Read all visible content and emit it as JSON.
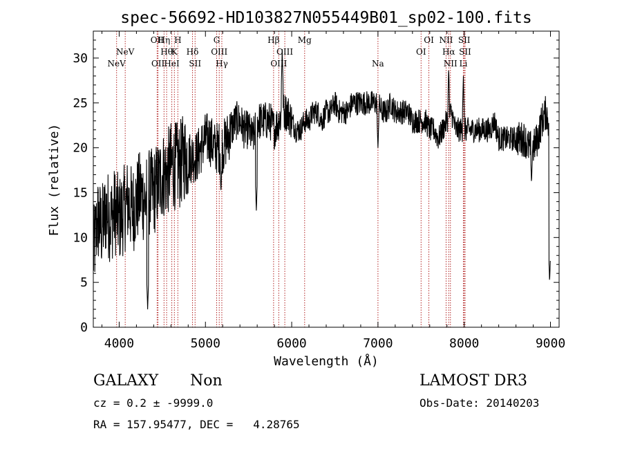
{
  "chart_data": {
    "type": "line",
    "title": "spec-56692-HD103827N055449B01_sp02-100.fits",
    "xlabel": "Wavelength (Å)",
    "ylabel": "Flux (relative)",
    "xlim": [
      3700,
      9100
    ],
    "ylim": [
      0,
      33
    ],
    "xticks": [
      4000,
      5000,
      6000,
      7000,
      8000,
      9000
    ],
    "yticks": [
      0,
      5,
      10,
      15,
      20,
      25,
      30
    ],
    "grid": false,
    "line_color": "#000000",
    "marker_color": "#b22222",
    "series": [
      {
        "name": "flux",
        "x": [
          3700,
          3750,
          3800,
          3850,
          3900,
          3950,
          4000,
          4050,
          4100,
          4150,
          4200,
          4250,
          4300,
          4350,
          4400,
          4450,
          4500,
          4550,
          4600,
          4650,
          4700,
          4750,
          4800,
          4850,
          4900,
          4950,
          5000,
          5050,
          5100,
          5150,
          5200,
          5250,
          5300,
          5350,
          5400,
          5450,
          5500,
          5550,
          5600,
          5650,
          5700,
          5750,
          5800,
          5850,
          5900,
          5950,
          6000,
          6050,
          6100,
          6150,
          6200,
          6250,
          6300,
          6350,
          6400,
          6450,
          6500,
          6550,
          6600,
          6650,
          6700,
          6750,
          6800,
          6850,
          6900,
          6950,
          7000,
          7050,
          7100,
          7150,
          7200,
          7250,
          7300,
          7350,
          7400,
          7450,
          7500,
          7550,
          7600,
          7650,
          7700,
          7750,
          7800,
          7850,
          7900,
          7950,
          8000,
          8050,
          8100,
          8150,
          8200,
          8250,
          8300,
          8350,
          8400,
          8450,
          8500,
          8550,
          8600,
          8650,
          8700,
          8750,
          8800,
          8850,
          8900,
          8950,
          9000
        ],
        "values": [
          8,
          12,
          11,
          13,
          12,
          13,
          12,
          13,
          14,
          13,
          14,
          15,
          14,
          15,
          15,
          16,
          17,
          17,
          18,
          18,
          18,
          19,
          19,
          19,
          19,
          20,
          21,
          21,
          20,
          20,
          20,
          21,
          22,
          23,
          23,
          22,
          22,
          21,
          23,
          23,
          23,
          23,
          22,
          23,
          24,
          24,
          23,
          22,
          22,
          23,
          23,
          24,
          24,
          23,
          24,
          24,
          25,
          24,
          24,
          24,
          25,
          25,
          25,
          25,
          25,
          25,
          25,
          24,
          24,
          25,
          24,
          24,
          24,
          24,
          23,
          23,
          23,
          23,
          22,
          22,
          21,
          22,
          23,
          24,
          22,
          22,
          22,
          22,
          22,
          22,
          22,
          22,
          22,
          23,
          21,
          21,
          21,
          21,
          21,
          21,
          21,
          20,
          20,
          21,
          23,
          24,
          22
        ]
      }
    ],
    "dips": [
      {
        "x": 4330,
        "value": 2
      },
      {
        "x": 5180,
        "value": 15
      },
      {
        "x": 5590,
        "value": 13
      },
      {
        "x": 7000,
        "value": 20
      },
      {
        "x": 8780,
        "value": 16
      },
      {
        "x": 8990,
        "value": 5
      }
    ],
    "peaks": [
      {
        "x": 5890,
        "value": 31
      },
      {
        "x": 7820,
        "value": 29
      },
      {
        "x": 7990,
        "value": 28
      }
    ],
    "lines": [
      {
        "label": "NeV",
        "x": 3970,
        "row": 2
      },
      {
        "label": "NeV",
        "x": 4070,
        "row": 1
      },
      {
        "label": "OII",
        "x": 4440,
        "row": 0
      },
      {
        "label": "Hη",
        "x": 4520,
        "row": 0
      },
      {
        "label": "H",
        "x": 4680,
        "row": 0
      },
      {
        "label": "Hθ",
        "x": 4550,
        "row": 1
      },
      {
        "label": "K",
        "x": 4640,
        "row": 1
      },
      {
        "label": "OII",
        "x": 4450,
        "row": 2
      },
      {
        "label": "HeI",
        "x": 4610,
        "row": 2
      },
      {
        "label": "Hδ",
        "x": 4850,
        "row": 1
      },
      {
        "label": "SII",
        "x": 4880,
        "row": 2
      },
      {
        "label": "G",
        "x": 5130,
        "row": 0
      },
      {
        "label": "OIII",
        "x": 5160,
        "row": 1
      },
      {
        "label": "Hγ",
        "x": 5190,
        "row": 2
      },
      {
        "label": "Hβ",
        "x": 5790,
        "row": 0
      },
      {
        "label": "OIII",
        "x": 5920,
        "row": 1
      },
      {
        "label": "OIII",
        "x": 5850,
        "row": 2
      },
      {
        "label": "Mg",
        "x": 6150,
        "row": 0
      },
      {
        "label": "Na",
        "x": 7000,
        "row": 2
      },
      {
        "label": "OI",
        "x": 7590,
        "row": 0
      },
      {
        "label": "OI",
        "x": 7500,
        "row": 1
      },
      {
        "label": "NII",
        "x": 7790,
        "row": 0
      },
      {
        "label": "Hα",
        "x": 7820,
        "row": 1
      },
      {
        "label": "NII",
        "x": 7840,
        "row": 2
      },
      {
        "label": "SII",
        "x": 8000,
        "row": 0
      },
      {
        "label": "SII",
        "x": 8010,
        "row": 1
      },
      {
        "label": "Li",
        "x": 7990,
        "row": 2
      }
    ]
  },
  "info": {
    "class": "GALAXY",
    "subclass": "Non",
    "cz": "cz = 0.2 ± -9999.0",
    "radec": "RA = 157.95477, DEC =   4.28765",
    "survey": "LAMOST DR3",
    "obs_date": "Obs-Date: 20140203"
  }
}
